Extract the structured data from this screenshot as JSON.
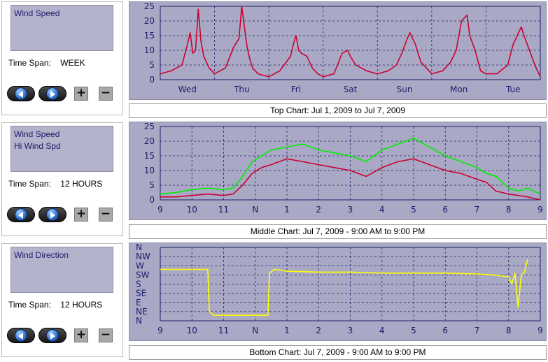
{
  "panels": [
    {
      "legend": [
        "Wind Speed"
      ],
      "time_span_label": "Time Span:",
      "time_span_value": "WEEK",
      "buttons": {
        "prev": "previous-arrow",
        "next": "next-arrow",
        "plus": "+",
        "minus": "−"
      }
    },
    {
      "legend": [
        "Wind Speed",
        "Hi Wind Spd"
      ],
      "time_span_label": "Time Span:",
      "time_span_value": "12 HOURS",
      "buttons": {
        "prev": "previous-arrow",
        "next": "next-arrow",
        "plus": "+",
        "minus": "−"
      }
    },
    {
      "legend": [
        "Wind Direction"
      ],
      "time_span_label": "Time Span:",
      "time_span_value": "12 HOURS",
      "buttons": {
        "prev": "previous-arrow",
        "next": "next-arrow",
        "plus": "+",
        "minus": "−"
      }
    }
  ],
  "captions": [
    "Top Chart:  Jul 1, 2009  to  Jul 7, 2009",
    "Middle Chart:  Jul 7, 2009 - 9:00 AM  to  9:00 PM",
    "Bottom Chart:  Jul 7, 2009 - 9:00 AM  to  9:00 PM"
  ],
  "colors": {
    "background": "#a9a9c5",
    "legend_bg": "#b3b3cc",
    "grid": "#20206a",
    "wind_speed": "#cc0033",
    "hi_wind": "#00ee00",
    "wind_direction": "#ffff00",
    "text": "#1c1c6a"
  },
  "chart_data": [
    {
      "type": "line",
      "x_labels": [
        "Wed",
        "Thu",
        "Fri",
        "Sat",
        "Sun",
        "Mon",
        "Tue"
      ],
      "ylim": [
        0,
        25
      ],
      "yticks": [
        0,
        5,
        10,
        15,
        20,
        25
      ],
      "xlim": [
        0,
        7
      ],
      "grid": true,
      "series": [
        {
          "name": "Wind Speed",
          "color": "#cc0033",
          "x": [
            0,
            0.2,
            0.4,
            0.5,
            0.55,
            0.6,
            0.65,
            0.7,
            0.75,
            0.8,
            0.9,
            1.0,
            1.1,
            1.2,
            1.35,
            1.45,
            1.5,
            1.55,
            1.6,
            1.65,
            1.7,
            1.8,
            2.0,
            2.2,
            2.4,
            2.45,
            2.5,
            2.55,
            2.6,
            2.7,
            2.8,
            2.9,
            3.0,
            3.2,
            3.35,
            3.45,
            3.5,
            3.6,
            3.8,
            4.0,
            4.2,
            4.35,
            4.45,
            4.55,
            4.6,
            4.7,
            4.8,
            5.0,
            5.2,
            5.35,
            5.45,
            5.55,
            5.65,
            5.7,
            5.8,
            5.9,
            6.0,
            6.2,
            6.4,
            6.5,
            6.6,
            6.65,
            6.7,
            6.8,
            6.9,
            7.0
          ],
          "y": [
            2,
            3,
            5,
            12,
            16,
            9,
            10,
            24,
            13,
            8,
            4,
            2,
            3,
            4,
            11,
            14,
            25,
            18,
            11,
            7,
            4,
            2,
            1,
            3,
            8,
            12,
            15,
            10,
            9,
            8,
            4,
            2,
            1,
            2,
            9,
            10,
            8,
            5,
            3,
            2,
            3,
            5,
            9,
            14,
            16,
            12,
            6,
            2,
            3,
            6,
            10,
            20,
            22,
            15,
            10,
            3,
            2,
            2,
            5,
            12,
            16,
            18,
            15,
            10,
            5,
            1
          ]
        }
      ]
    },
    {
      "type": "line",
      "x_labels": [
        "9",
        "10",
        "11",
        "N",
        "1",
        "2",
        "3",
        "4",
        "5",
        "6",
        "7",
        "8",
        "9"
      ],
      "ylim": [
        0,
        25
      ],
      "yticks": [
        0,
        5,
        10,
        15,
        20,
        25
      ],
      "xlim": [
        0,
        12
      ],
      "grid": true,
      "series": [
        {
          "name": "Wind Speed",
          "color": "#cc0033",
          "x": [
            0,
            0.5,
            1,
            1.5,
            2,
            2.3,
            2.6,
            2.9,
            3.2,
            3.5,
            4,
            4.5,
            5,
            5.5,
            6,
            6.5,
            7,
            7.5,
            8,
            8.5,
            9,
            9.5,
            10,
            10.3,
            10.6,
            11,
            11.3,
            11.6,
            12
          ],
          "y": [
            1,
            1,
            1.5,
            2,
            1.5,
            2,
            5,
            9,
            11,
            12,
            14,
            13,
            12,
            11,
            10,
            8,
            11,
            13,
            14,
            12,
            10,
            9,
            7,
            6,
            3,
            2,
            1.5,
            1,
            0
          ]
        },
        {
          "name": "Hi Wind Spd",
          "color": "#00ee00",
          "x": [
            0,
            0.5,
            1,
            1.5,
            2,
            2.3,
            2.6,
            2.9,
            3.2,
            3.5,
            4,
            4.5,
            5,
            5.5,
            6,
            6.5,
            7,
            7.5,
            8,
            8.5,
            9,
            9.5,
            10,
            10.3,
            10.6,
            11,
            11.3,
            11.6,
            12
          ],
          "y": [
            2,
            2.5,
            3.5,
            4,
            3.5,
            4,
            8,
            13,
            15,
            17,
            18,
            19,
            17,
            16,
            15,
            13,
            17,
            19,
            21,
            18,
            15,
            13,
            11,
            9,
            8,
            4,
            3,
            4,
            2
          ]
        }
      ]
    },
    {
      "type": "line",
      "x_labels": [
        "9",
        "10",
        "11",
        "N",
        "1",
        "2",
        "3",
        "4",
        "5",
        "6",
        "7",
        "8",
        "9"
      ],
      "y_labels": [
        "N",
        "NE",
        "E",
        "SE",
        "S",
        "SW",
        "W",
        "NW",
        "N"
      ],
      "ylim": [
        0,
        8
      ],
      "xlim": [
        0,
        12
      ],
      "grid": true,
      "series": [
        {
          "name": "Wind Direction",
          "color": "#ffff00",
          "x": [
            0,
            1.5,
            1.55,
            1.7,
            2.5,
            3.4,
            3.45,
            3.6,
            4,
            5,
            6,
            7,
            8,
            9,
            10,
            10.5,
            11,
            11.1,
            11.2,
            11.3,
            11.4,
            11.5,
            11.6
          ],
          "y": [
            5.6,
            5.6,
            1,
            0.6,
            0.6,
            0.6,
            5.2,
            5.6,
            5.4,
            5.3,
            5.3,
            5.2,
            5.2,
            5.2,
            5.1,
            5.0,
            4.8,
            4.0,
            5.2,
            1.5,
            5.0,
            5.3,
            6.7
          ]
        }
      ]
    }
  ]
}
